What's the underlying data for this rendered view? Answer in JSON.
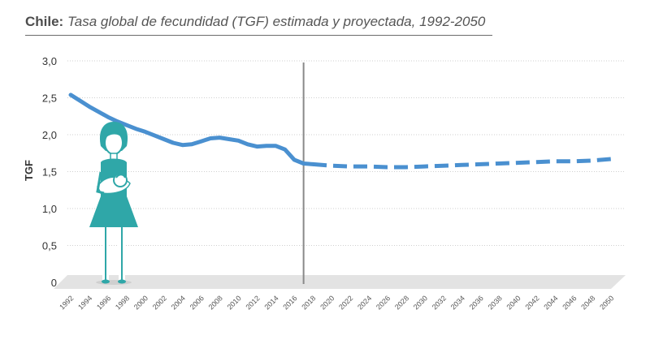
{
  "title_bold": "Chile:",
  "title_rest": "Tasa global de fecundidad (TGF) estimada y proyectada, 1992-2050",
  "colors": {
    "line": "#4a90d0",
    "divider": "#8a8a8a",
    "grid": "#cfcfcf",
    "woman": "#2fa7a8",
    "floor": "#e3e3e3"
  },
  "chart_data": {
    "type": "line",
    "title": "Tasa global de fecundidad (TGF) estimada y proyectada, 1992-2050",
    "xlabel": "",
    "ylabel": "TGF",
    "xlim": [
      1992,
      2050
    ],
    "ylim": [
      0,
      3.0
    ],
    "grid": true,
    "y_ticks": [
      "0",
      "0,5",
      "1,0",
      "1,5",
      "2,0",
      "2,5",
      "3,0"
    ],
    "x_ticks": [
      "1992",
      "1994",
      "1996",
      "1998",
      "2000",
      "2002",
      "2004",
      "2006",
      "2008",
      "2010",
      "2012",
      "2014",
      "2016",
      "2018",
      "2020",
      "2022",
      "2024",
      "2026",
      "2028",
      "2030",
      "2032",
      "2034",
      "2036",
      "2038",
      "2040",
      "2042",
      "2044",
      "2046",
      "2048",
      "2050"
    ],
    "divider_year": 2017,
    "estimated": {
      "x": [
        1992,
        1993,
        1994,
        1995,
        1996,
        1997,
        1998,
        1999,
        2000,
        2001,
        2002,
        2003,
        2004,
        2005,
        2006,
        2007,
        2008,
        2009,
        2010,
        2011,
        2012,
        2013,
        2014,
        2015,
        2016,
        2017,
        2018
      ],
      "y": [
        2.54,
        2.46,
        2.38,
        2.31,
        2.24,
        2.18,
        2.13,
        2.08,
        2.04,
        1.99,
        1.94,
        1.89,
        1.86,
        1.87,
        1.91,
        1.95,
        1.96,
        1.94,
        1.92,
        1.87,
        1.84,
        1.85,
        1.85,
        1.8,
        1.66,
        1.61,
        1.6
      ]
    },
    "projected": {
      "x": [
        2018,
        2020,
        2022,
        2024,
        2026,
        2028,
        2030,
        2032,
        2034,
        2036,
        2038,
        2040,
        2042,
        2044,
        2046,
        2048,
        2050
      ],
      "y": [
        1.6,
        1.58,
        1.57,
        1.57,
        1.56,
        1.56,
        1.57,
        1.58,
        1.59,
        1.6,
        1.61,
        1.62,
        1.63,
        1.64,
        1.64,
        1.65,
        1.67
      ]
    }
  }
}
